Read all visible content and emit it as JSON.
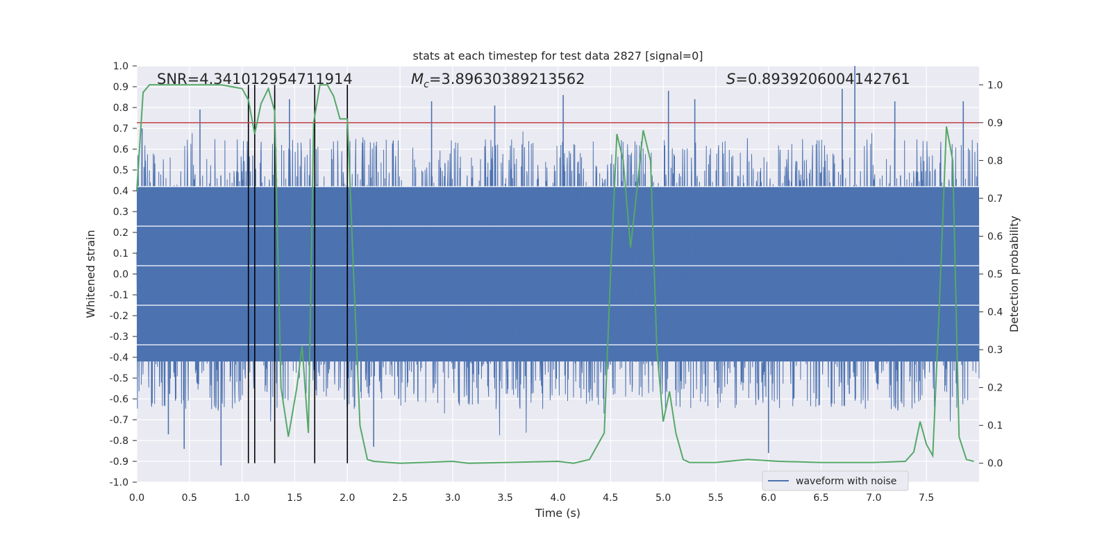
{
  "chart_data": {
    "type": "line",
    "title": "stats at each timestep for test data 2827 [signal=0]",
    "xlabel": "Time (s)",
    "ylabel": "Whitened strain",
    "y2label": "Detection probability",
    "xlim": [
      0.0,
      8.0
    ],
    "ylim": [
      -1.0,
      1.0
    ],
    "y2lim": [
      -0.05,
      1.05
    ],
    "x_ticks": [
      "0.0",
      "0.5",
      "1.0",
      "1.5",
      "2.0",
      "2.5",
      "3.0",
      "3.5",
      "4.0",
      "4.5",
      "5.0",
      "5.5",
      "6.0",
      "6.5",
      "7.0",
      "7.5"
    ],
    "y_ticks": [
      "1.0",
      "0.9",
      "0.8",
      "0.7",
      "0.6",
      "0.5",
      "0.4",
      "0.3",
      "0.2",
      "0.1",
      "0.0",
      "-0.1",
      "-0.2",
      "-0.3",
      "-0.4",
      "-0.5",
      "-0.6",
      "-0.7",
      "-0.8",
      "-0.9",
      "-1.0"
    ],
    "y2_ticks": [
      "1.0",
      "0.9",
      "0.8",
      "0.7",
      "0.6",
      "0.5",
      "0.4",
      "0.3",
      "0.2",
      "0.1",
      "0.0"
    ],
    "grid": true,
    "legend_position": "lower-right",
    "annotations": {
      "snr": "SNR=4.341012954711914",
      "mc_symbol": "M",
      "mc_sub": "c",
      "mc_value": "=3.89630389213562",
      "s_symbol": "S",
      "s_value": "=0.8939206004142761"
    },
    "threshold": 0.9,
    "vertical_lines_x": [
      1.06,
      1.12,
      1.31,
      1.69,
      2.0
    ],
    "series": [
      {
        "name": "waveform with noise",
        "kind": "noise",
        "color": "#4c72b0",
        "dense_amplitude": 0.42,
        "peaks": [
          {
            "x": 0.05,
            "y": 0.7
          },
          {
            "x": 0.3,
            "y": -0.77
          },
          {
            "x": 0.45,
            "y": -0.84
          },
          {
            "x": 0.6,
            "y": 0.79
          },
          {
            "x": 0.8,
            "y": -0.92
          },
          {
            "x": 1.31,
            "y": 0.88
          },
          {
            "x": 1.45,
            "y": 0.84
          },
          {
            "x": 2.25,
            "y": -0.83
          },
          {
            "x": 2.8,
            "y": 0.83
          },
          {
            "x": 3.4,
            "y": 0.81
          },
          {
            "x": 4.05,
            "y": 0.86
          },
          {
            "x": 5.05,
            "y": 0.88
          },
          {
            "x": 5.3,
            "y": 0.84
          },
          {
            "x": 6.0,
            "y": -0.86
          },
          {
            "x": 6.7,
            "y": 0.89
          },
          {
            "x": 6.82,
            "y": 1.0
          },
          {
            "x": 7.2,
            "y": 0.83
          },
          {
            "x": 7.85,
            "y": 0.83
          }
        ]
      },
      {
        "name": "detection probability",
        "kind": "prob",
        "color": "#55a868",
        "x": [
          0.0,
          0.06,
          0.12,
          0.2,
          0.5,
          0.8,
          1.0,
          1.06,
          1.12,
          1.18,
          1.25,
          1.31,
          1.37,
          1.44,
          1.52,
          1.57,
          1.63,
          1.68,
          1.74,
          1.81,
          1.87,
          1.93,
          2.0,
          2.06,
          2.12,
          2.19,
          2.25,
          2.5,
          3.0,
          3.15,
          3.5,
          4.0,
          4.15,
          4.3,
          4.38,
          4.44,
          4.5,
          4.56,
          4.62,
          4.69,
          4.75,
          4.81,
          4.88,
          4.94,
          5.0,
          5.06,
          5.12,
          5.19,
          5.25,
          5.5,
          5.8,
          6.1,
          6.5,
          7.0,
          7.3,
          7.38,
          7.44,
          7.5,
          7.56,
          7.62,
          7.69,
          7.75,
          7.81,
          7.88,
          7.95
        ],
        "values": [
          0.72,
          0.98,
          1.0,
          1.0,
          1.0,
          1.0,
          0.99,
          0.96,
          0.87,
          0.95,
          0.99,
          0.93,
          0.2,
          0.07,
          0.2,
          0.31,
          0.08,
          0.9,
          1.0,
          1.0,
          0.97,
          0.91,
          0.91,
          0.5,
          0.1,
          0.01,
          0.005,
          0.0,
          0.005,
          0.0,
          0.002,
          0.005,
          0.0,
          0.01,
          0.05,
          0.08,
          0.5,
          0.87,
          0.8,
          0.57,
          0.72,
          0.88,
          0.8,
          0.3,
          0.11,
          0.19,
          0.08,
          0.01,
          0.002,
          0.002,
          0.01,
          0.005,
          0.002,
          0.002,
          0.005,
          0.03,
          0.11,
          0.05,
          0.02,
          0.4,
          0.89,
          0.8,
          0.07,
          0.01,
          0.005
        ]
      }
    ]
  }
}
